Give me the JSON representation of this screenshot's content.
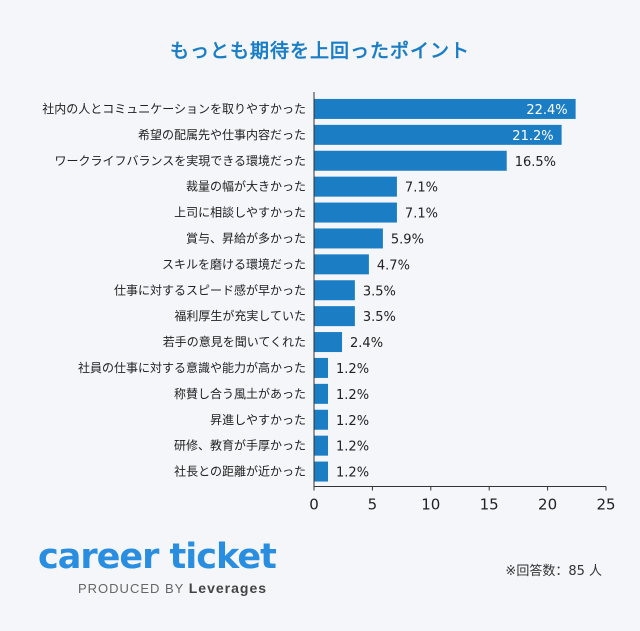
{
  "chart_data": {
    "type": "bar",
    "orientation": "horizontal",
    "title": "もっとも期待を上回ったポイント",
    "categories": [
      "社内の人とコミュニケーションを取りやすかった",
      "希望の配属先や仕事内容だった",
      "ワークライフバランスを実現できる環境だった",
      "裁量の幅が大きかった",
      "上司に相談しやすかった",
      "賞与、昇給が多かった",
      "スキルを磨ける環境だった",
      "仕事に対するスピード感が早かった",
      "福利厚生が充実していた",
      "若手の意見を聞いてくれた",
      "社員の仕事に対する意識や能力が高かった",
      "称賛し合う風土があった",
      "昇進しやすかった",
      "研修、教育が手厚かった",
      "社長との距離が近かった"
    ],
    "values": [
      22.4,
      21.2,
      16.5,
      7.1,
      7.1,
      5.9,
      4.7,
      3.5,
      3.5,
      2.4,
      1.2,
      1.2,
      1.2,
      1.2,
      1.2
    ],
    "value_labels": [
      "22.4%",
      "21.2%",
      "16.5%",
      "7.1%",
      "7.1%",
      "5.9%",
      "4.7%",
      "3.5%",
      "3.5%",
      "2.4%",
      "1.2%",
      "1.2%",
      "1.2%",
      "1.2%",
      "1.2%"
    ],
    "xlim": [
      0,
      25
    ],
    "xticks": [
      0,
      5,
      10,
      15,
      20,
      25
    ],
    "xtick_labels": [
      "0",
      "5",
      "10",
      "15",
      "20",
      "25"
    ],
    "bar_color": "#1b7ec5",
    "grid": false
  },
  "logo": {
    "main": "career ticket",
    "sub_prefix": "PRODUCED BY",
    "sub_brand": "Leverages"
  },
  "note": "※回答数：85 人"
}
